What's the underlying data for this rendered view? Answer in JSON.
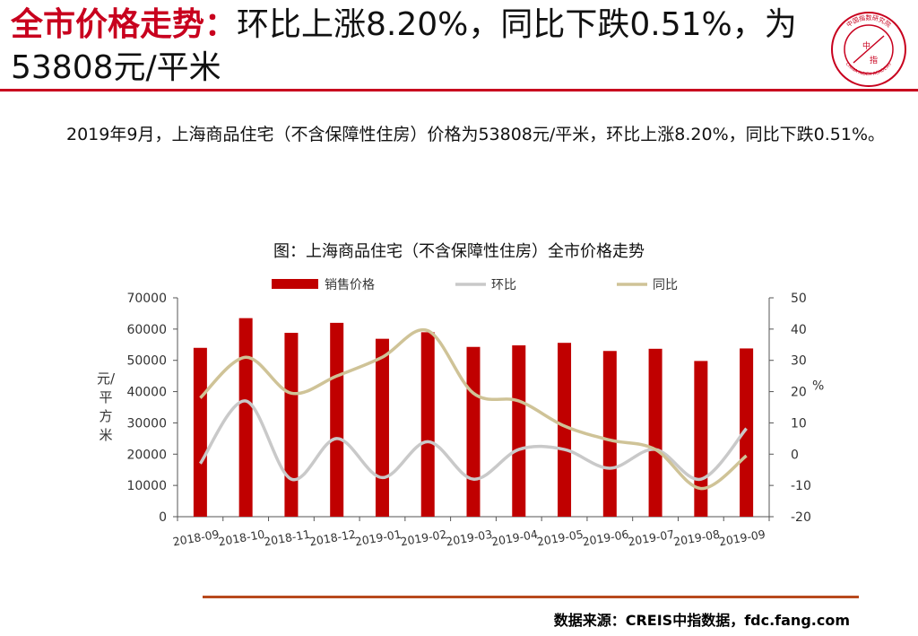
{
  "header": {
    "title_highlight": "全市价格走势：",
    "title_rest": "环比上涨8.20%，同比下跌0.51%，为53808元/平米"
  },
  "logo": {
    "text_cn": "中国指数研究院",
    "text_en": "CHINA INDEX ACADEMY",
    "center_top": "中",
    "center_bottom": "指"
  },
  "description": "2019年9月，上海商品住宅（不含保障性住房）价格为53808元/平米，环比上涨8.20%，同比下跌0.51%。",
  "source": "数据来源：CREIS中指数据，fdc.fang.com",
  "colors": {
    "accent": "#c8001e",
    "bar": "#c00000",
    "mom": "#c9c9c9",
    "yoy": "#cfc397"
  },
  "chart_data": {
    "type": "bar",
    "title": "图：上海商品住宅（不含保障性住房）全市价格走势",
    "categories": [
      "2018-09",
      "2018-10",
      "2018-11",
      "2018-12",
      "2019-01",
      "2019-02",
      "2019-03",
      "2019-04",
      "2019-05",
      "2019-06",
      "2019-07",
      "2019-08",
      "2019-09"
    ],
    "series": [
      {
        "name": "销售价格",
        "kind": "bar",
        "axis": "left",
        "values": [
          54000,
          63500,
          58800,
          62000,
          56900,
          59000,
          54300,
          54800,
          55600,
          53000,
          53700,
          49800,
          53808
        ]
      },
      {
        "name": "环比",
        "kind": "line",
        "axis": "right",
        "values": [
          -3,
          17,
          -8,
          5,
          -7.5,
          4,
          -8,
          1.5,
          1.5,
          -4.5,
          1.5,
          -8,
          8.2
        ]
      },
      {
        "name": "同比",
        "kind": "line",
        "axis": "right",
        "values": [
          18,
          31,
          19.5,
          25,
          31,
          39.5,
          19.5,
          17,
          9,
          4.5,
          1.5,
          -11,
          -0.51
        ]
      }
    ],
    "ylabel": "元/平方米",
    "y2label": "%",
    "ylim": [
      0,
      70000
    ],
    "yticks": [
      "70000",
      "60000",
      "50000",
      "40000",
      "30000",
      "20000",
      "10000",
      "0"
    ],
    "y2lim": [
      -20,
      50
    ],
    "y2ticks": [
      "50",
      "40",
      "30",
      "20",
      "10",
      "0",
      "-10",
      "-20"
    ],
    "legend": "top"
  }
}
